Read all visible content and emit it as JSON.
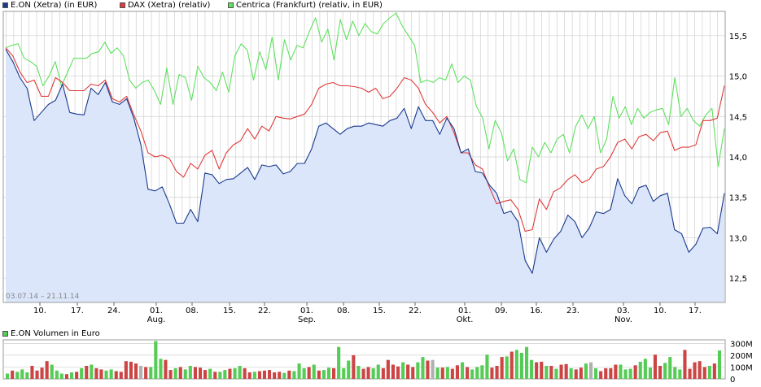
{
  "legend": {
    "eon": "E.ON (Xetra) (in EUR)",
    "dax": "DAX (Xetra) (relativ)",
    "centrica": "Centrica (Frankfurt) (relativ, in EUR)",
    "volume": "E.ON Volumen in Euro"
  },
  "date_range": "03.07.14 – 21.11.14",
  "colors": {
    "eon": "#1a3a8c",
    "eon_fill": "#dbe6fb",
    "dax": "#e03a3a",
    "centrica": "#5fe05f",
    "vol_up": "#55cc55",
    "vol_down": "#cc4444",
    "vol_neutral": "#b0b0b0",
    "grid": "#d0d0d0",
    "frame": "#999999"
  },
  "chart_data": [
    {
      "type": "line",
      "x_tick_labels": [
        "10.",
        "17.",
        "24.",
        "01.",
        "08.",
        "15.",
        "22.",
        "01.",
        "08.",
        "15.",
        "22.",
        "01.",
        "09.",
        "16.",
        "23.",
        "03.",
        "10.",
        "17."
      ],
      "month_labels": [
        "Aug.",
        "Sep.",
        "Okt.",
        "Nov."
      ],
      "y_ticks": [
        12.5,
        13.0,
        13.5,
        14.0,
        14.5,
        15.0,
        15.5
      ],
      "ylim": [
        12.2,
        15.8
      ],
      "grid": true,
      "legend_position": "top",
      "series": [
        {
          "name": "E.ON (Xetra) (in EUR)",
          "values": [
            15.33,
            15.18,
            14.98,
            14.85,
            14.45,
            14.55,
            14.65,
            14.7,
            14.9,
            14.55,
            14.53,
            14.52,
            14.85,
            14.77,
            14.92,
            14.68,
            14.65,
            14.72,
            14.48,
            14.15,
            13.6,
            13.58,
            13.63,
            13.42,
            13.18,
            13.18,
            13.35,
            13.2,
            13.8,
            13.78,
            13.67,
            13.72,
            13.73,
            13.8,
            13.87,
            13.72,
            13.9,
            13.88,
            13.9,
            13.79,
            13.82,
            13.92,
            13.92,
            14.1,
            14.38,
            14.42,
            14.35,
            14.28,
            14.35,
            14.38,
            14.38,
            14.42,
            14.4,
            14.38,
            14.45,
            14.48,
            14.6,
            14.35,
            14.62,
            14.45,
            14.45,
            14.28,
            14.48,
            14.35,
            14.05,
            14.1,
            13.82,
            13.8,
            13.65,
            13.55,
            13.3,
            13.33,
            13.2,
            12.72,
            12.56,
            13.0,
            12.82,
            12.98,
            13.08,
            13.28,
            13.2,
            13.0,
            13.12,
            13.32,
            13.3,
            13.35,
            13.73,
            13.52,
            13.42,
            13.62,
            13.65,
            13.45,
            13.52,
            13.55,
            13.1,
            13.05,
            12.82,
            12.92,
            13.12,
            13.13,
            13.05,
            13.55
          ]
        },
        {
          "name": "DAX (Xetra) (relativ)",
          "values": [
            15.35,
            15.25,
            15.05,
            14.92,
            14.95,
            14.75,
            14.75,
            14.98,
            14.92,
            14.82,
            14.82,
            14.82,
            14.9,
            14.88,
            14.95,
            14.72,
            14.68,
            14.75,
            14.52,
            14.32,
            14.05,
            14.0,
            14.02,
            13.98,
            13.82,
            13.75,
            13.92,
            13.85,
            14.02,
            14.08,
            13.85,
            14.05,
            14.15,
            14.2,
            14.35,
            14.22,
            14.38,
            14.32,
            14.5,
            14.48,
            14.47,
            14.5,
            14.53,
            14.65,
            14.85,
            14.9,
            14.92,
            14.88,
            14.88,
            14.87,
            14.85,
            14.8,
            14.85,
            14.72,
            14.75,
            14.85,
            14.98,
            14.95,
            14.85,
            14.65,
            14.55,
            14.42,
            14.5,
            14.3,
            14.05,
            14.05,
            13.9,
            13.85,
            13.62,
            13.42,
            13.45,
            13.47,
            13.35,
            13.08,
            13.1,
            13.48,
            13.35,
            13.57,
            13.62,
            13.72,
            13.78,
            13.68,
            13.72,
            13.85,
            13.88,
            14.0,
            14.18,
            14.22,
            14.1,
            14.25,
            14.28,
            14.2,
            14.3,
            14.32,
            14.08,
            14.12,
            14.12,
            14.15,
            14.45,
            14.45,
            14.48,
            14.88
          ]
        },
        {
          "name": "Centrica (Frankfurt) (relativ, in EUR)",
          "values": [
            15.35,
            15.38,
            15.4,
            15.22,
            15.18,
            15.12,
            14.88,
            15.0,
            15.18,
            14.88,
            15.05,
            15.22,
            15.22,
            15.22,
            15.28,
            15.3,
            15.42,
            15.28,
            15.35,
            15.25,
            14.95,
            14.85,
            14.92,
            14.95,
            14.82,
            14.65,
            15.1,
            14.65,
            15.02,
            14.98,
            14.7,
            15.12,
            14.98,
            14.92,
            14.82,
            15.05,
            14.8,
            15.25,
            15.4,
            15.32,
            14.95,
            15.3,
            15.08,
            15.48,
            14.95,
            15.45,
            15.2,
            15.38,
            15.35,
            15.55,
            15.72,
            15.42,
            15.58,
            15.2,
            15.7,
            15.45,
            15.68,
            15.5,
            15.65,
            15.55,
            15.52,
            15.65,
            15.72,
            15.78,
            15.62,
            15.5,
            15.38,
            14.92,
            14.95,
            14.92,
            14.98,
            14.95,
            15.15,
            14.92,
            15.0,
            14.95,
            14.62,
            14.48,
            14.1,
            14.45,
            14.3,
            13.95,
            14.1,
            13.72,
            13.68,
            14.12,
            14.0,
            14.18,
            14.05,
            14.22,
            14.28,
            14.05,
            14.38,
            14.52,
            14.35,
            14.5,
            14.05,
            14.22,
            14.75,
            14.48,
            14.62,
            14.4,
            14.6,
            14.48,
            14.55,
            14.58,
            14.6,
            14.4,
            14.98,
            14.5,
            14.6,
            14.45,
            14.38,
            14.52,
            14.6,
            13.88,
            14.35
          ]
        }
      ]
    },
    {
      "type": "bar",
      "title": "E.ON Volumen in Euro",
      "y_tick_labels": [
        "300M",
        "200M",
        "100M",
        "0"
      ],
      "ylim": [
        0,
        330
      ],
      "values": [
        45,
        70,
        60,
        80,
        55,
        110,
        70,
        95,
        150,
        120,
        70,
        45,
        40,
        55,
        60,
        90,
        110,
        120,
        90,
        80,
        70,
        80,
        65,
        60,
        150,
        145,
        130,
        110,
        100,
        100,
        320,
        170,
        160,
        75,
        90,
        100,
        80,
        110,
        100,
        95,
        75,
        85,
        60,
        60,
        75,
        85,
        90,
        110,
        90,
        55,
        60,
        65,
        70,
        75,
        55,
        60,
        50,
        70,
        65,
        130,
        90,
        100,
        120,
        70,
        75,
        95,
        90,
        270,
        90,
        155,
        200,
        110,
        85,
        100,
        90,
        120,
        90,
        160,
        120,
        105,
        140,
        120,
        100,
        140,
        185,
        155,
        160,
        95,
        95,
        100,
        85,
        115,
        140,
        100,
        80,
        100,
        115,
        205,
        95,
        110,
        185,
        190,
        230,
        245,
        220,
        270,
        160,
        140,
        145,
        110,
        110,
        85,
        120,
        125,
        90,
        80,
        95,
        130,
        140,
        90,
        65,
        90,
        90,
        120,
        120,
        80,
        85,
        115,
        145,
        170,
        95,
        205,
        110,
        135,
        185,
        100,
        80,
        245,
        85,
        140,
        150,
        100,
        110,
        130,
        240
      ],
      "colors": [
        "g",
        "r",
        "g",
        "g",
        "g",
        "r",
        "r",
        "r",
        "r",
        "g",
        "g",
        "g",
        "r",
        "g",
        "r",
        "g",
        "r",
        "g",
        "r",
        "r",
        "g",
        "g",
        "r",
        "r",
        "r",
        "r",
        "r",
        "n",
        "r",
        "g",
        "g",
        "g",
        "r",
        "r",
        "g",
        "r",
        "g",
        "g",
        "r",
        "r",
        "r",
        "g",
        "r",
        "g",
        "g",
        "r",
        "g",
        "g",
        "r",
        "r",
        "g",
        "r",
        "r",
        "r",
        "r",
        "r",
        "g",
        "r",
        "g",
        "g",
        "g",
        "r",
        "g",
        "r",
        "g",
        "g",
        "r",
        "g",
        "g",
        "g",
        "r",
        "g",
        "r",
        "r",
        "g",
        "g",
        "r",
        "r",
        "r",
        "r",
        "g",
        "r",
        "r",
        "g",
        "g",
        "r",
        "n",
        "g",
        "r",
        "g",
        "r",
        "r",
        "g",
        "r",
        "g",
        "g",
        "g",
        "g",
        "r",
        "r",
        "r",
        "g",
        "r",
        "g",
        "g",
        "g",
        "g",
        "r",
        "r",
        "g",
        "r",
        "g",
        "r",
        "r",
        "g",
        "r",
        "r",
        "g",
        "n",
        "g",
        "r",
        "r",
        "r",
        "r",
        "g",
        "g",
        "g",
        "r",
        "g",
        "g",
        "g",
        "r",
        "r",
        "g",
        "g",
        "g",
        "g",
        "r",
        "r",
        "r",
        "r",
        "r",
        "g",
        "r",
        "g"
      ]
    }
  ]
}
